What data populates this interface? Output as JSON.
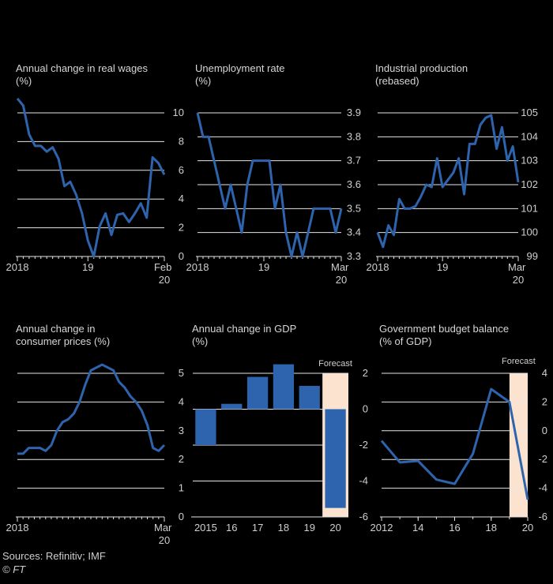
{
  "chart_data": [
    {
      "type": "line",
      "title": [
        "Annual change in real wages",
        "(%)"
      ],
      "categories": [
        "2018",
        null,
        null,
        null,
        null,
        null,
        null,
        null,
        null,
        null,
        null,
        null,
        "19",
        null,
        null,
        null,
        null,
        null,
        null,
        null,
        null,
        null,
        null,
        null,
        null,
        "Feb 20"
      ],
      "values": [
        11.0,
        10.5,
        8.5,
        7.7,
        7.7,
        7.3,
        7.6,
        6.8,
        4.9,
        5.2,
        4.3,
        3.0,
        1.1,
        0.0,
        2.1,
        3.0,
        1.5,
        2.9,
        3.0,
        2.4,
        3.0,
        3.7,
        2.7,
        6.9,
        6.5,
        5.7
      ],
      "color": "#2e64ad",
      "ylim": [
        0,
        10
      ],
      "yticks": [
        0,
        2,
        4,
        6,
        8,
        10
      ],
      "grid": true
    },
    {
      "type": "line",
      "title": [
        "Unemployment rate",
        "(%)"
      ],
      "categories": [
        "2018",
        null,
        null,
        null,
        null,
        null,
        null,
        null,
        null,
        null,
        null,
        null,
        "19",
        null,
        null,
        null,
        null,
        null,
        null,
        null,
        null,
        null,
        null,
        null,
        null,
        null,
        "Mar 20"
      ],
      "values": [
        3.9,
        3.8,
        3.8,
        3.7,
        3.6,
        3.5,
        3.6,
        3.5,
        3.4,
        3.6,
        3.7,
        3.7,
        3.7,
        3.7,
        3.5,
        3.6,
        3.4,
        3.3,
        3.4,
        3.3,
        3.4,
        3.5,
        3.5,
        3.5,
        3.5,
        3.4,
        3.5
      ],
      "color": "#2e64ad",
      "ylim": [
        3.3,
        3.9
      ],
      "yticks": [
        3.3,
        3.4,
        3.5,
        3.6,
        3.7,
        3.8,
        3.9
      ],
      "grid": true
    },
    {
      "type": "line",
      "title": [
        "Industrial production",
        "(rebased)"
      ],
      "categories": [
        "2018",
        null,
        null,
        null,
        null,
        null,
        null,
        null,
        null,
        null,
        null,
        null,
        "19",
        null,
        null,
        null,
        null,
        null,
        null,
        null,
        null,
        null,
        null,
        null,
        null,
        null,
        "Mar 20"
      ],
      "values": [
        100.0,
        99.4,
        100.3,
        99.9,
        101.4,
        101.0,
        101.0,
        101.1,
        101.5,
        102.0,
        101.9,
        103.1,
        101.9,
        102.2,
        102.5,
        103.1,
        101.6,
        103.7,
        103.7,
        104.5,
        104.8,
        104.9,
        103.5,
        104.4,
        103.0,
        103.6,
        102.1
      ],
      "color": "#2e64ad",
      "ylim": [
        99,
        105
      ],
      "yticks": [
        99,
        100,
        101,
        102,
        103,
        104,
        105
      ],
      "grid": true
    },
    {
      "type": "line",
      "title": [
        "Annual change in",
        "consumer prices (%)"
      ],
      "categories": [
        "2018",
        null,
        null,
        null,
        null,
        null,
        null,
        null,
        null,
        null,
        null,
        null,
        null,
        null,
        null,
        null,
        null,
        null,
        null,
        null,
        null,
        null,
        null,
        null,
        null,
        null,
        "Mar 20"
      ],
      "values": [
        2.2,
        2.2,
        2.4,
        2.4,
        2.4,
        2.3,
        2.5,
        3.0,
        3.3,
        3.4,
        3.6,
        4.0,
        4.6,
        5.1,
        5.2,
        5.3,
        5.2,
        5.1,
        4.7,
        4.5,
        4.2,
        4.0,
        3.7,
        3.2,
        2.4,
        2.3,
        2.5
      ],
      "color": "#2e64ad",
      "ylim": [
        0,
        5
      ],
      "yticks": [
        0,
        1,
        2,
        3,
        4,
        5
      ],
      "grid": true
    },
    {
      "type": "bar",
      "title": [
        "Annual change in GDP",
        "(%)"
      ],
      "categories": [
        "2015",
        "16",
        "17",
        "18",
        "19",
        "20"
      ],
      "values": [
        -2.0,
        0.3,
        1.8,
        2.5,
        1.3,
        -5.5
      ],
      "color": "#2e64ad",
      "ylim": [
        -6,
        2
      ],
      "yticks": [
        -6,
        -4,
        -2,
        0,
        2
      ],
      "grid": true,
      "forecast": {
        "label": "Forecast",
        "category": "20",
        "color": "#fce3cf"
      }
    },
    {
      "type": "line",
      "title": [
        "Government budget balance",
        "(% of GDP)"
      ],
      "x": [
        2012,
        2013,
        2014,
        2015,
        2016,
        2017,
        2018,
        2019,
        2020
      ],
      "values": [
        -0.7,
        -2.2,
        -2.1,
        -3.4,
        -3.7,
        -1.6,
        2.9,
        2.0,
        -4.8
      ],
      "color": "#2e64ad",
      "xlim": [
        2012,
        2020
      ],
      "xticks": [
        {
          "value": 2012,
          "label": "2012"
        },
        {
          "value": 2014,
          "label": "14"
        },
        {
          "value": 2016,
          "label": "16"
        },
        {
          "value": 2018,
          "label": "18"
        },
        {
          "value": 2020,
          "label": "20"
        }
      ],
      "ylim": [
        -6,
        4
      ],
      "yticks": [
        -6,
        -4,
        -2,
        0,
        2,
        4
      ],
      "grid": true,
      "forecast": {
        "label": "Forecast",
        "from": 2019,
        "to": 2020,
        "color": "#fce3cf"
      }
    }
  ],
  "footer": {
    "sources": "Sources: Refinitiv; IMF",
    "credit": "© FT"
  }
}
